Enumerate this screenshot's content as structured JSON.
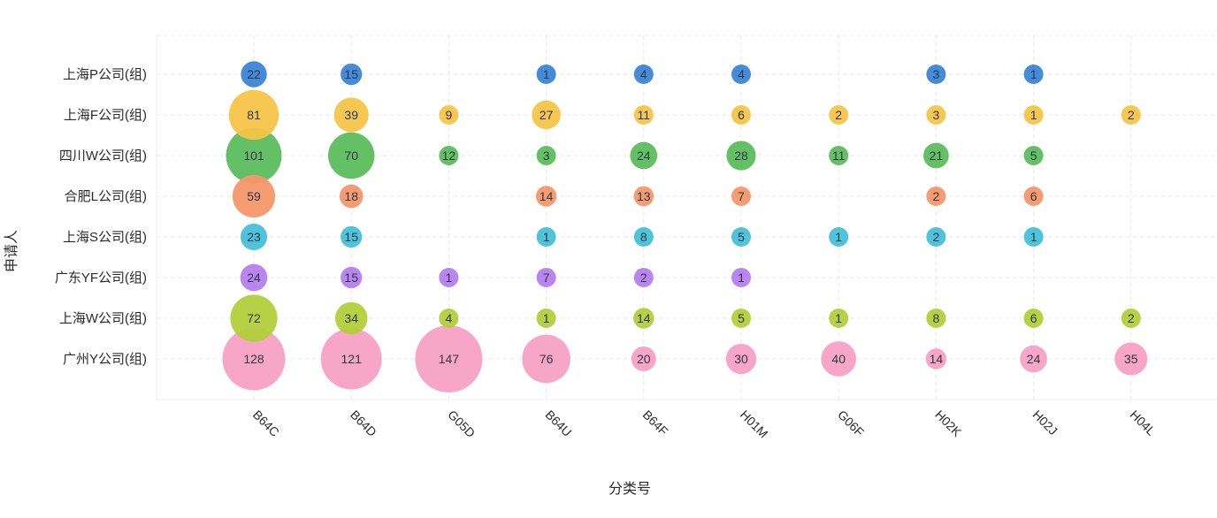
{
  "chart_data": {
    "type": "scatter",
    "subtype": "bubble",
    "xlabel": "分类号",
    "ylabel": "申请人",
    "grid": true,
    "categories_x": [
      "B64C",
      "B64D",
      "G05D",
      "B64U",
      "B64F",
      "H01M",
      "G06F",
      "H02K",
      "H02J",
      "H04L"
    ],
    "categories_y": [
      "上海P公司(组)",
      "上海F公司(组)",
      "四川W公司(组)",
      "合肥L公司(组)",
      "上海S公司(组)",
      "广东YF公司(组)",
      "上海W公司(组)",
      "广州Y公司(组)"
    ],
    "series": [
      {
        "name": "上海P公司(组)",
        "color": "#3a86d8",
        "values": [
          22,
          15,
          null,
          1,
          4,
          4,
          null,
          3,
          1,
          null
        ]
      },
      {
        "name": "上海F公司(组)",
        "color": "#f7c548",
        "values": [
          81,
          39,
          9,
          27,
          11,
          6,
          2,
          3,
          1,
          2
        ]
      },
      {
        "name": "四川W公司(组)",
        "color": "#5cbd5c",
        "values": [
          101,
          70,
          12,
          3,
          24,
          28,
          11,
          21,
          5,
          null
        ]
      },
      {
        "name": "合肥L公司(组)",
        "color": "#f4976c",
        "values": [
          59,
          18,
          null,
          14,
          13,
          7,
          null,
          2,
          6,
          null
        ]
      },
      {
        "name": "上海S公司(组)",
        "color": "#45c0d8",
        "values": [
          23,
          15,
          null,
          1,
          8,
          5,
          1,
          2,
          1,
          null
        ]
      },
      {
        "name": "广东YF公司(组)",
        "color": "#b57ff0",
        "values": [
          24,
          15,
          1,
          7,
          2,
          1,
          null,
          null,
          null,
          null
        ]
      },
      {
        "name": "上海W公司(组)",
        "color": "#b3cf3a",
        "values": [
          72,
          34,
          4,
          1,
          14,
          5,
          1,
          8,
          6,
          2
        ]
      },
      {
        "name": "广州Y公司(组)",
        "color": "#f7a1c4",
        "values": [
          128,
          121,
          147,
          76,
          20,
          30,
          40,
          14,
          24,
          35
        ]
      }
    ]
  }
}
